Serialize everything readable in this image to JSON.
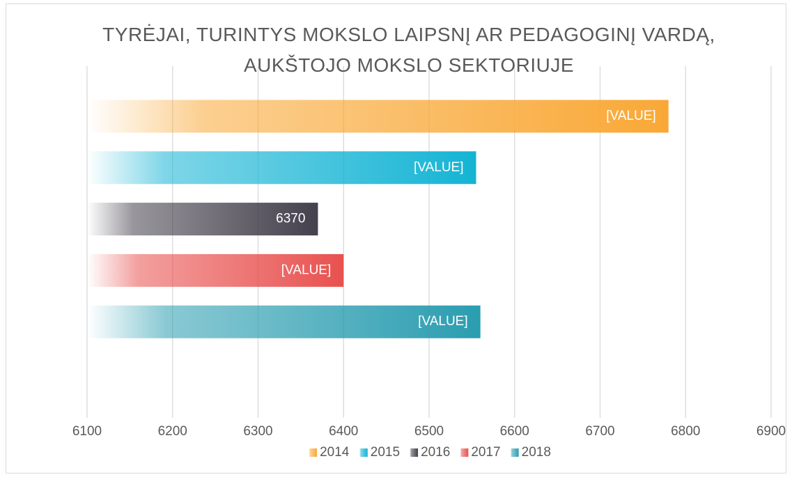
{
  "chart_data": {
    "type": "bar",
    "orientation": "horizontal",
    "title": "TYRĖJAI, TURINTYS MOKSLO LAIPSNĮ AR PEDAGOGINĮ VARDĄ, AUKŠTOJO MOKSLO SEKTORIUJE",
    "series": [
      {
        "name": "2014",
        "color": "#f9a836",
        "values": [
          6780
        ],
        "value_labels": [
          "[VALUE]"
        ]
      },
      {
        "name": "2015",
        "color": "#14b4d4",
        "values": [
          6555
        ],
        "value_labels": [
          "[VALUE]"
        ]
      },
      {
        "name": "2016",
        "color": "#44404c",
        "values": [
          6370
        ]
      },
      {
        "name": "2017",
        "color": "#e8514f",
        "values": [
          6400
        ],
        "value_labels": [
          "[VALUE]"
        ]
      },
      {
        "name": "2018",
        "color": "#2a9db0",
        "values": [
          6560
        ],
        "value_labels": [
          "[VALUE]"
        ]
      }
    ],
    "xlim": [
      6100,
      6900
    ],
    "xticks": [
      6100,
      6200,
      6300,
      6400,
      6500,
      6600,
      6700,
      6800,
      6900
    ],
    "grid": true,
    "legend": "bottom"
  }
}
